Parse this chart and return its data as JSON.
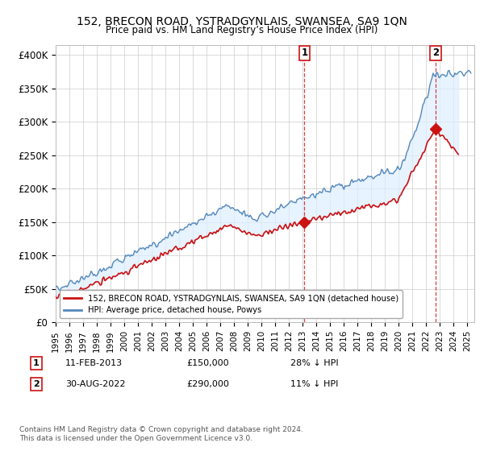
{
  "title": "152, BRECON ROAD, YSTRADGYNLAIS, SWANSEA, SA9 1QN",
  "subtitle": "Price paid vs. HM Land Registry’s House Price Index (HPI)",
  "ylabel_ticks": [
    "£0",
    "£50K",
    "£100K",
    "£150K",
    "£200K",
    "£250K",
    "£300K",
    "£350K",
    "£400K"
  ],
  "ytick_values": [
    0,
    50000,
    100000,
    150000,
    200000,
    250000,
    300000,
    350000,
    400000
  ],
  "ylim": [
    0,
    415000
  ],
  "xlim_start": 1995.0,
  "xlim_end": 2025.5,
  "hpi_color": "#5588bb",
  "hpi_fill_color": "#ddeeff",
  "price_color": "#cc1111",
  "marker1_x": 2013.12,
  "marker1_y": 150000,
  "marker2_x": 2022.67,
  "marker2_y": 290000,
  "legend_line1": "152, BRECON ROAD, YSTRADGYNLAIS, SWANSEA, SA9 1QN (detached house)",
  "legend_line2": "HPI: Average price, detached house, Powys",
  "note1_label": "1",
  "note1_date": "11-FEB-2013",
  "note1_price": "£150,000",
  "note1_hpi": "28% ↓ HPI",
  "note2_label": "2",
  "note2_date": "30-AUG-2022",
  "note2_price": "£290,000",
  "note2_hpi": "11% ↓ HPI",
  "footer": "Contains HM Land Registry data © Crown copyright and database right 2024.\nThis data is licensed under the Open Government Licence v3.0.",
  "bg_color": "#ffffff",
  "grid_color": "#cccccc"
}
